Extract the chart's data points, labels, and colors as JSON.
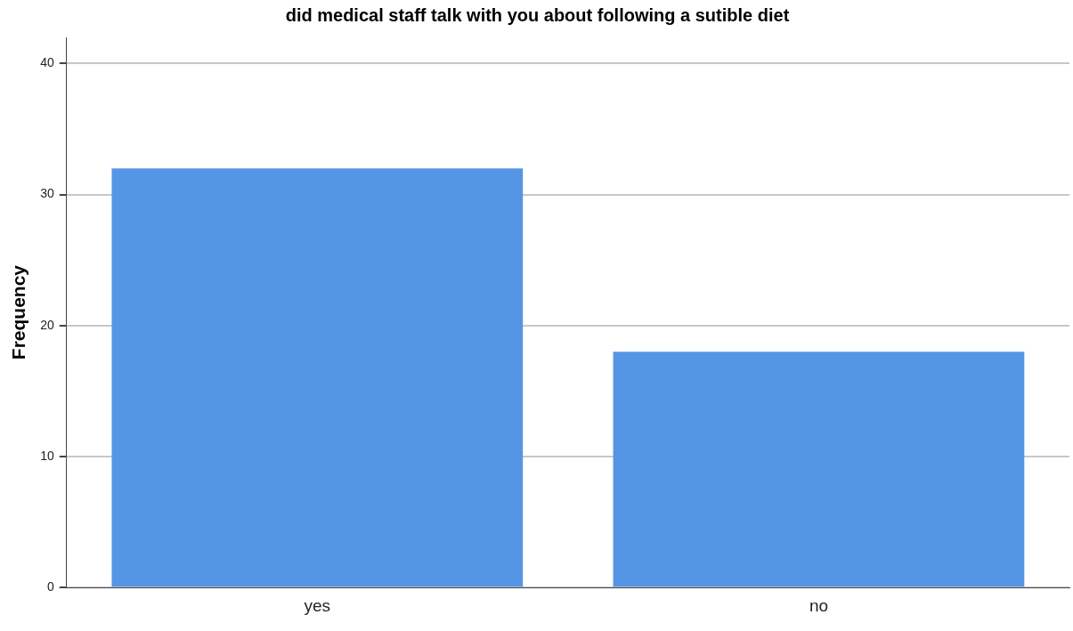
{
  "chart_data": {
    "type": "bar",
    "title": "did medical staff talk with you about following a sutible diet",
    "ylabel": "Frequency",
    "categories": [
      "yes",
      "no"
    ],
    "values": [
      32,
      18
    ],
    "color": "#5596e4",
    "ylim": [
      0,
      42
    ],
    "yticks": [
      0,
      10,
      20,
      30,
      40
    ],
    "grid": "y",
    "legend": false
  }
}
